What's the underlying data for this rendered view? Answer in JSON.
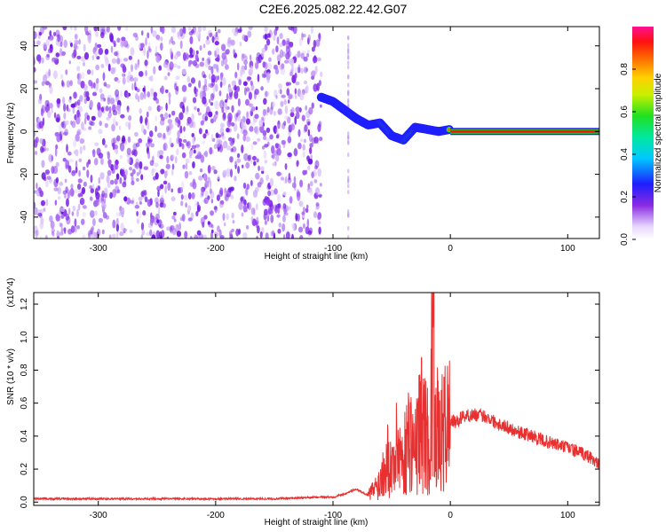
{
  "title": "C2E6.2025.082.22.42.G07",
  "chart_data": [
    {
      "type": "heatmap",
      "xlabel": "Height of straight line (km)",
      "ylabel": "Frequency (Hz)",
      "xlim": [
        -355,
        127
      ],
      "ylim": [
        -50,
        49
      ],
      "x_ticks": [
        -300,
        -200,
        -100,
        0,
        100
      ],
      "y_ticks": [
        -40,
        -20,
        0,
        20,
        40
      ],
      "colorbar": {
        "label": "Normalized spectral amplitude",
        "range": [
          0,
          1
        ],
        "ticks": [
          0.0,
          0.2,
          0.4,
          0.6,
          0.8
        ]
      },
      "noise_region_x": [
        -355,
        -110
      ],
      "signal_track": [
        {
          "x": -110,
          "y": 16
        },
        {
          "x": -100,
          "y": 14
        },
        {
          "x": -90,
          "y": 10
        },
        {
          "x": -80,
          "y": 6
        },
        {
          "x": -70,
          "y": 3
        },
        {
          "x": -60,
          "y": 4
        },
        {
          "x": -50,
          "y": -2
        },
        {
          "x": -40,
          "y": -4
        },
        {
          "x": -30,
          "y": 2
        },
        {
          "x": -20,
          "y": 1
        },
        {
          "x": -10,
          "y": 0
        },
        {
          "x": 0,
          "y": 1
        },
        {
          "x": 127,
          "y": 0
        }
      ],
      "carrier_line": {
        "x_start": 0,
        "x_end": 127,
        "y": 0,
        "amplitude": 1.0
      }
    },
    {
      "type": "line",
      "xlabel": "Height of straight line (km)",
      "ylabel": "SNR (10 * v/v)",
      "y_multiplier": "(x10^4)",
      "xlim": [
        -355,
        127
      ],
      "ylim": [
        -0.02,
        1.27
      ],
      "x_ticks": [
        -300,
        -200,
        -100,
        0,
        100
      ],
      "y_ticks": [
        0.0,
        0.2,
        0.4,
        0.6,
        0.8,
        1.0,
        1.2
      ],
      "color": "#e83030",
      "series": [
        {
          "x": [
            -355,
            -300,
            -250,
            -200,
            -150,
            -110,
            -100,
            -90,
            -80,
            -70,
            -60,
            -55,
            -50,
            -45,
            -40,
            -35,
            -30,
            -25,
            -20,
            -17,
            -15,
            -13,
            -10,
            -5,
            0,
            5,
            10,
            20,
            30,
            40,
            50,
            60,
            70,
            80,
            90,
            100,
            110,
            120,
            127
          ],
          "y": [
            0.02,
            0.02,
            0.02,
            0.02,
            0.02,
            0.03,
            0.03,
            0.05,
            0.08,
            0.04,
            0.12,
            0.3,
            0.2,
            0.35,
            0.25,
            0.42,
            0.3,
            0.5,
            0.4,
            0.3,
            1.25,
            0.6,
            0.35,
            0.45,
            0.5,
            0.48,
            0.52,
            0.53,
            0.52,
            0.48,
            0.45,
            0.42,
            0.4,
            0.37,
            0.35,
            0.33,
            0.3,
            0.27,
            0.22
          ]
        }
      ]
    }
  ]
}
